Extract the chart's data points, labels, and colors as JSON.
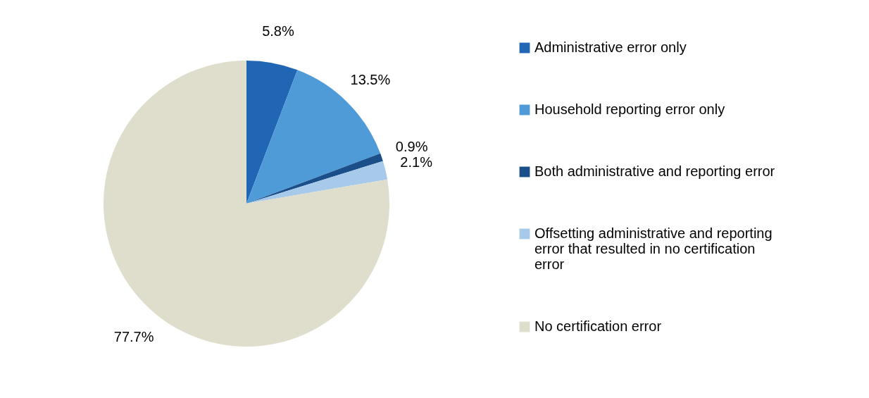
{
  "chart_data": {
    "type": "pie",
    "categories": [
      "Administrative error only",
      "Household reporting error only",
      "Both administrative and reporting error",
      "Offsetting administrative and reporting error that resulted in no certification error",
      "No certification error"
    ],
    "values": [
      5.8,
      13.5,
      0.9,
      2.1,
      77.7
    ],
    "colors": [
      "#2166b5",
      "#4f9bd8",
      "#1b4f8a",
      "#a7c9ea",
      "#dfddcb"
    ],
    "value_labels": [
      "5.8%",
      "13.5%",
      "0.9%",
      "2.1%",
      "77.7%"
    ],
    "legend": "right"
  }
}
